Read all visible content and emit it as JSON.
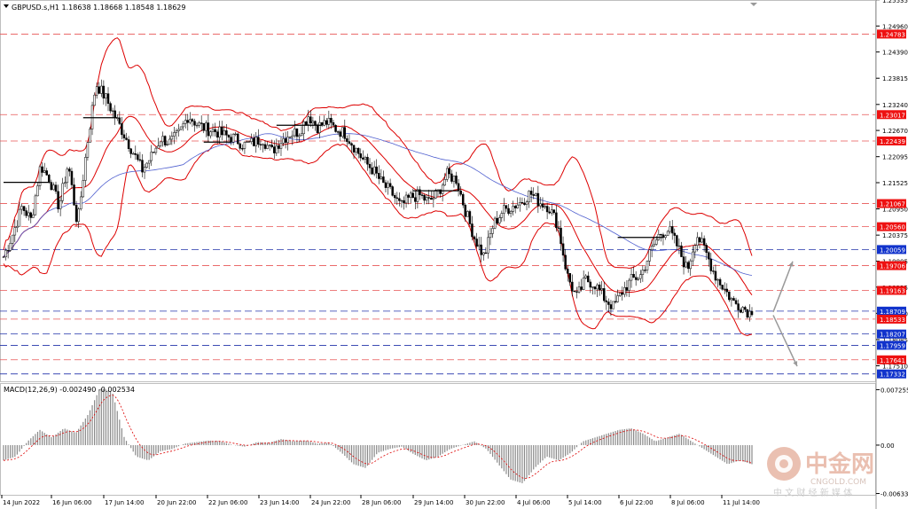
{
  "header": {
    "symbol_line": "GBPUSD.s,H1  1.18638 1.18668 1.18548 1.18629"
  },
  "macd": {
    "label": "MACD(12,26,9) -0.002490 -0.002534"
  },
  "watermark": {
    "brand_cn": "中金网",
    "brand_en": "CNGOLD.COM",
    "slogan_cn": "中 文 财 经 新 媒 体"
  },
  "colors": {
    "background": "#ffffff",
    "candle": "#000000",
    "bollinger": "#dd0000",
    "ma_blue": "#4f5fcf",
    "level_red": "#e85555",
    "level_blue": "#2233aa",
    "macd_bar": "#8a8a8a",
    "macd_signal": "#dd0000",
    "tag_red": "#ee1111",
    "tag_blue": "#1133cc"
  },
  "chart_data": {
    "type": "candlestick",
    "symbol": "GBPUSD.s",
    "timeframe": "H1",
    "ohlc_last": {
      "open": 1.18638,
      "high": 1.18668,
      "low": 1.18548,
      "close": 1.18629
    },
    "ylim": [
      1.1717,
      1.2553
    ],
    "y_ticks": [
      "1.25535",
      "1.24960",
      "1.24390",
      "1.23815",
      "1.23240",
      "1.22670",
      "1.22095",
      "1.21525",
      "1.20950",
      "1.20375",
      "1.19805",
      "1.19235",
      "1.18660",
      "1.18085",
      "1.17510"
    ],
    "x_ticks": [
      "14 Jun 2022",
      "16 Jun 06:00",
      "17 Jun 14:00",
      "20 Jun 22:00",
      "22 Jun 06:00",
      "23 Jun 14:00",
      "24 Jun 22:00",
      "28 Jun 06:00",
      "29 Jun 14:00",
      "30 Jun 22:00",
      "4 Jul 06:00",
      "5 Jul 14:00",
      "6 Jul 22:00",
      "8 Jul 06:00",
      "11 Jul 14:00"
    ],
    "price_tags": [
      {
        "label": "1.24783",
        "value": 1.24783,
        "color": "red"
      },
      {
        "label": "1.23017",
        "value": 1.23017,
        "color": "red"
      },
      {
        "label": "1.22439",
        "value": 1.22439,
        "color": "red"
      },
      {
        "label": "1.21067",
        "value": 1.21067,
        "color": "red"
      },
      {
        "label": "1.20560",
        "value": 1.2056,
        "color": "red"
      },
      {
        "label": "1.20059",
        "value": 1.20059,
        "color": "blue"
      },
      {
        "label": "1.19706",
        "value": 1.19706,
        "color": "red"
      },
      {
        "label": "1.19163",
        "value": 1.19163,
        "color": "red"
      },
      {
        "label": "1.18709",
        "value": 1.18709,
        "color": "blue"
      },
      {
        "label": "1.18533",
        "value": 1.18533,
        "color": "red"
      },
      {
        "label": "1.18207",
        "value": 1.18207,
        "color": "blue"
      },
      {
        "label": "1.17959",
        "value": 1.17959,
        "color": "blue"
      },
      {
        "label": "1.17641",
        "value": 1.17641,
        "color": "red"
      },
      {
        "label": "1.17332",
        "value": 1.17332,
        "color": "blue"
      }
    ],
    "price_path": [
      1.199,
      1.204,
      1.21,
      1.207,
      1.219,
      1.216,
      1.21,
      1.2195,
      1.206,
      1.223,
      1.237,
      1.234,
      1.23,
      1.226,
      1.222,
      1.218,
      1.221,
      1.225,
      1.224,
      1.226,
      1.23,
      1.228,
      1.227,
      1.2265,
      1.2255,
      1.225,
      1.2235,
      1.224,
      1.225,
      1.222,
      1.2245,
      1.226,
      1.2265,
      1.23,
      1.2275,
      1.2285,
      1.227,
      1.226,
      1.223,
      1.22,
      1.218,
      1.215,
      1.213,
      1.21,
      1.212,
      1.2125,
      1.211,
      1.213,
      1.217,
      1.216,
      1.209,
      1.203,
      1.199,
      1.206,
      1.209,
      1.21,
      1.211,
      1.213,
      1.211,
      1.21,
      1.206,
      1.195,
      1.19,
      1.194,
      1.193,
      1.19,
      1.188,
      1.1915,
      1.194,
      1.195,
      1.2,
      1.204,
      1.205,
      1.201,
      1.196,
      1.204,
      1.2,
      1.195,
      1.192,
      1.189,
      1.188,
      1.18629
    ],
    "forecast_arrows": [
      {
        "from": 1.1869,
        "to": 1.198
      },
      {
        "from": 1.1862,
        "to": 1.175
      }
    ],
    "macd": {
      "name": "MACD(12,26,9)",
      "main": -0.00249,
      "signal": -0.002534,
      "ylim": [
        -0.0065,
        0.008
      ],
      "y_ticks": [
        "0.007255",
        "0.00",
        "-0.006331"
      ],
      "histogram": [
        -0.002,
        -0.0015,
        0.0005,
        0.002,
        0.001,
        0.0022,
        0.0016,
        0.004,
        0.0075,
        0.007,
        0.001,
        -0.0015,
        -0.002,
        -0.0008,
        -0.0005,
        0.0002,
        0.0004,
        0.0006,
        0.0005,
        0.0,
        -0.0002,
        0.0004,
        0.0003,
        0.0008,
        0.0005,
        0.0006,
        0.0002,
        0.0003,
        -0.001,
        -0.0025,
        -0.003,
        -0.001,
        -0.0005,
        -0.0002,
        -0.0012,
        -0.002,
        -0.0015,
        -0.0005,
        0.0,
        0.0005,
        -0.0005,
        -0.0025,
        -0.0045,
        -0.005,
        -0.003,
        -0.0015,
        -0.002,
        -0.001,
        0.0005,
        0.001,
        0.0015,
        0.002,
        0.0022,
        0.0015,
        0.0005,
        0.001,
        0.0015,
        0.0005,
        -0.0005,
        -0.0015,
        -0.0025,
        -0.002,
        -0.0025
      ]
    }
  }
}
